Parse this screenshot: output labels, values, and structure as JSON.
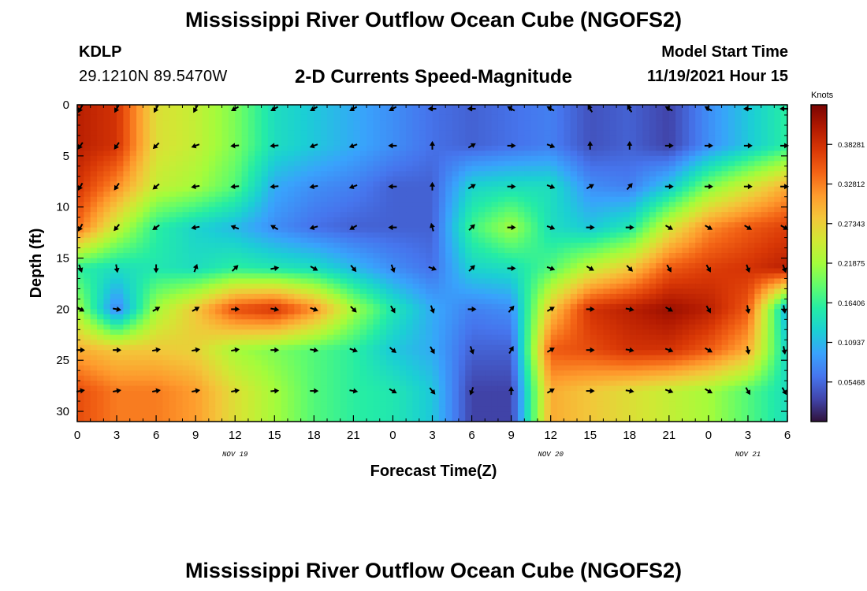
{
  "header": {
    "title": "Mississippi River Outflow Ocean Cube (NGOFS2)",
    "station_id": "KDLP",
    "station_coords": "29.1210N  89.5470W",
    "subtitle": "2-D Currents Speed-Magnitude",
    "start_label": "Model Start Time",
    "start_time": "11/19/2021 Hour 15"
  },
  "footer": {
    "title": "Mississippi River Outflow Ocean Cube (NGOFS2)"
  },
  "chart_data": {
    "type": "heatmap",
    "xlabel": "Forecast Time(Z)",
    "ylabel": "Depth (ft)",
    "x_range_hours_from_start": [
      0,
      54
    ],
    "ylim": [
      0,
      31
    ],
    "y_inverted": true,
    "x_tick_labels": [
      "0",
      "3",
      "6",
      "9",
      "12",
      "15",
      "18",
      "21",
      "0",
      "3",
      "6",
      "9",
      "12",
      "15",
      "18",
      "21",
      "0",
      "3",
      "6"
    ],
    "y_ticks": [
      0,
      5,
      10,
      15,
      20,
      25,
      30
    ],
    "date_labels": [
      {
        "label": "NOV 19",
        "tick_index": 4
      },
      {
        "label": "NOV 20",
        "tick_index": 12
      },
      {
        "label": "NOV 21",
        "tick_index": 17
      }
    ],
    "colorbar": {
      "title": "Knots",
      "tick_labels": [
        "0.38281",
        "0.32812",
        "0.27343",
        "0.21875",
        "0.16406",
        "0.10937",
        "0.05468"
      ],
      "range": [
        0,
        0.4375
      ],
      "colors": [
        "#30123b",
        "#4145ab",
        "#4675ed",
        "#39a2fc",
        "#1bcfd4",
        "#24eca6",
        "#61fc6c",
        "#a4fc3b",
        "#d1e834",
        "#f3c63a",
        "#fe9b2d",
        "#f36315",
        "#d93806",
        "#b11901",
        "#7a0402"
      ]
    },
    "depths_ft": [
      0,
      4,
      8,
      12,
      16,
      20,
      24,
      28
    ],
    "times_hours": [
      0,
      3,
      6,
      9,
      12,
      15,
      18,
      21,
      24,
      27,
      30,
      33,
      36,
      39,
      42,
      45,
      48,
      51,
      54
    ],
    "speed_knots": [
      [
        0.4,
        0.38,
        0.26,
        0.24,
        0.2,
        0.14,
        0.12,
        0.1,
        0.08,
        0.06,
        0.05,
        0.06,
        0.07,
        0.04,
        0.05,
        0.03,
        0.08,
        0.12,
        0.16
      ],
      [
        0.4,
        0.38,
        0.26,
        0.24,
        0.2,
        0.14,
        0.12,
        0.1,
        0.08,
        0.06,
        0.05,
        0.06,
        0.07,
        0.04,
        0.05,
        0.03,
        0.08,
        0.12,
        0.16
      ],
      [
        0.38,
        0.32,
        0.24,
        0.22,
        0.18,
        0.1,
        0.08,
        0.07,
        0.05,
        0.05,
        0.13,
        0.14,
        0.14,
        0.08,
        0.07,
        0.12,
        0.2,
        0.25,
        0.3
      ],
      [
        0.34,
        0.24,
        0.16,
        0.13,
        0.11,
        0.08,
        0.06,
        0.05,
        0.05,
        0.05,
        0.17,
        0.22,
        0.14,
        0.12,
        0.15,
        0.25,
        0.32,
        0.35,
        0.37
      ],
      [
        0.16,
        0.14,
        0.15,
        0.14,
        0.16,
        0.15,
        0.14,
        0.11,
        0.08,
        0.06,
        0.13,
        0.14,
        0.18,
        0.24,
        0.28,
        0.35,
        0.37,
        0.38,
        0.4
      ],
      [
        0.22,
        0.07,
        0.22,
        0.28,
        0.36,
        0.38,
        0.32,
        0.22,
        0.15,
        0.1,
        0.07,
        0.08,
        0.28,
        0.38,
        0.4,
        0.42,
        0.4,
        0.35,
        0.1
      ],
      [
        0.3,
        0.28,
        0.28,
        0.27,
        0.22,
        0.2,
        0.18,
        0.16,
        0.12,
        0.1,
        0.05,
        0.05,
        0.35,
        0.36,
        0.38,
        0.38,
        0.35,
        0.3,
        0.13
      ],
      [
        0.36,
        0.33,
        0.33,
        0.31,
        0.26,
        0.22,
        0.18,
        0.16,
        0.15,
        0.12,
        0.03,
        0.03,
        0.3,
        0.28,
        0.26,
        0.24,
        0.22,
        0.18,
        0.14
      ]
    ],
    "direction_deg": [
      [
        210,
        210,
        210,
        210,
        240,
        240,
        240,
        240,
        240,
        270,
        270,
        300,
        300,
        330,
        330,
        300,
        300,
        270,
        270
      ],
      [
        215,
        215,
        225,
        250,
        265,
        265,
        250,
        250,
        270,
        0,
        60,
        90,
        110,
        0,
        0,
        90,
        90,
        90,
        90
      ],
      [
        210,
        215,
        230,
        260,
        265,
        265,
        260,
        250,
        270,
        0,
        60,
        90,
        110,
        60,
        40,
        90,
        90,
        90,
        90
      ],
      [
        210,
        220,
        235,
        260,
        290,
        300,
        255,
        240,
        270,
        345,
        45,
        90,
        110,
        90,
        90,
        120,
        120,
        120,
        120
      ],
      [
        160,
        170,
        180,
        20,
        45,
        80,
        120,
        140,
        160,
        110,
        45,
        90,
        110,
        120,
        135,
        150,
        150,
        160,
        160
      ],
      [
        120,
        100,
        60,
        60,
        90,
        100,
        110,
        135,
        150,
        160,
        90,
        40,
        60,
        90,
        100,
        120,
        150,
        170,
        170
      ],
      [
        90,
        90,
        80,
        80,
        80,
        90,
        100,
        110,
        130,
        150,
        160,
        30,
        60,
        90,
        100,
        110,
        120,
        170,
        170
      ],
      [
        80,
        80,
        80,
        80,
        80,
        85,
        90,
        100,
        120,
        140,
        200,
        0,
        60,
        90,
        100,
        110,
        120,
        150,
        150
      ]
    ]
  }
}
